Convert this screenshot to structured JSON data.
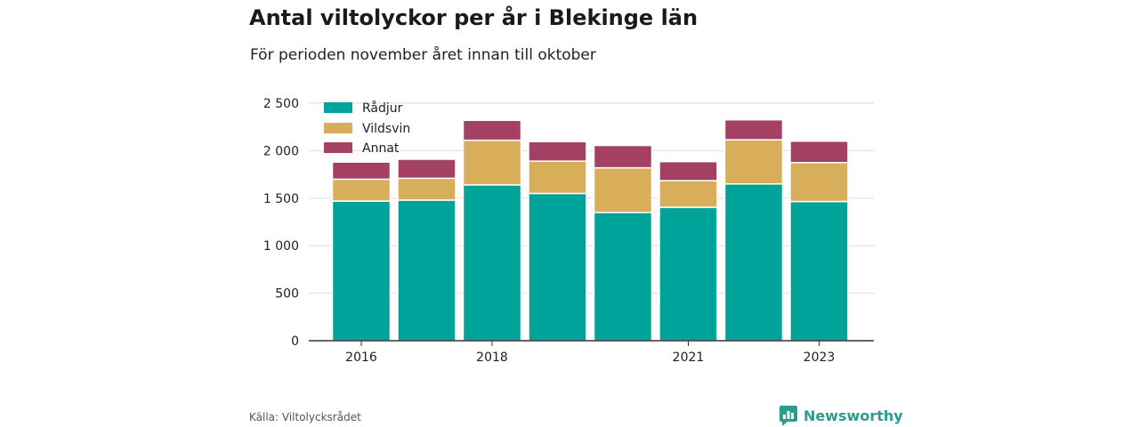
{
  "header": {
    "title": "Antal viltolyckor per år i Blekinge län",
    "subtitle": "För perioden november året innan till oktober"
  },
  "footer": {
    "source": "Källa: Viltolycksrådet",
    "brand": "Newsworthy",
    "brand_color": "#2a9d8f"
  },
  "chart_data": {
    "type": "bar",
    "stacked": true,
    "categories": [
      "2016",
      "2017",
      "2018",
      "2019",
      "2020",
      "2021",
      "2022",
      "2023"
    ],
    "x_tick_labels": [
      "2016",
      "",
      "2018",
      "",
      "",
      "2021",
      "",
      "2023"
    ],
    "series": [
      {
        "name": "Rådjur",
        "color": "#00a39a",
        "values": [
          1470,
          1480,
          1640,
          1550,
          1350,
          1405,
          1650,
          1465
        ]
      },
      {
        "name": "Vildsvin",
        "color": "#d9ae5b",
        "values": [
          230,
          230,
          470,
          340,
          470,
          280,
          465,
          410
        ]
      },
      {
        "name": "Annat",
        "color": "#a54065",
        "values": [
          180,
          200,
          210,
          205,
          235,
          200,
          210,
          225
        ]
      }
    ],
    "ylim": [
      0,
      2500
    ],
    "y_ticks": [
      0,
      500,
      1000,
      1500,
      2000,
      2500
    ],
    "y_tick_labels": [
      "0",
      "500",
      "1 000",
      "1 500",
      "2 000",
      "2 500"
    ],
    "grid": true,
    "legend_position": "top-left"
  }
}
